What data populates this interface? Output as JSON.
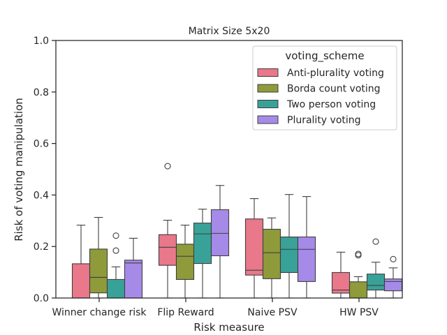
{
  "chart_data": {
    "type": "box",
    "title": "Matrix Size 5x20",
    "xlabel": "Risk measure",
    "ylabel": "Risk of voting manipulation",
    "ylim": [
      0,
      1.0
    ],
    "yticks": [
      "0.0",
      "0.2",
      "0.4",
      "0.6",
      "0.8",
      "1.0"
    ],
    "categories": [
      "Winner change risk",
      "Flip Reward",
      "Naive PSV",
      "HW PSV"
    ],
    "legend": {
      "title": "voting_scheme",
      "placement": "top-right"
    },
    "series": [
      {
        "name": "Anti-plurality voting",
        "color": "#e8788a",
        "boxes": [
          {
            "whislo": 0.0,
            "q1": 0.0,
            "med": 0.0,
            "q3": 0.133,
            "whishi": 0.283,
            "fliers": []
          },
          {
            "whislo": 0.0,
            "q1": 0.127,
            "med": 0.197,
            "q3": 0.246,
            "whishi": 0.302,
            "fliers": [
              0.512
            ]
          },
          {
            "whislo": 0.0,
            "q1": 0.089,
            "med": 0.108,
            "q3": 0.307,
            "whishi": 0.386,
            "fliers": []
          },
          {
            "whislo": 0.0,
            "q1": 0.019,
            "med": 0.031,
            "q3": 0.099,
            "whishi": 0.178,
            "fliers": []
          }
        ]
      },
      {
        "name": "Borda count voting",
        "color": "#8f9a3a",
        "boxes": [
          {
            "whislo": 0.0,
            "q1": 0.02,
            "med": 0.08,
            "q3": 0.19,
            "whishi": 0.313,
            "fliers": []
          },
          {
            "whislo": 0.0,
            "q1": 0.072,
            "med": 0.162,
            "q3": 0.209,
            "whishi": 0.283,
            "fliers": []
          },
          {
            "whislo": 0.0,
            "q1": 0.075,
            "med": 0.176,
            "q3": 0.267,
            "whishi": 0.311,
            "fliers": []
          },
          {
            "whislo": 0.0,
            "q1": 0.0,
            "med": 0.0,
            "q3": 0.063,
            "whishi": 0.083,
            "fliers": [
              0.166,
              0.171
            ]
          }
        ]
      },
      {
        "name": "Two person voting",
        "color": "#39a298",
        "boxes": [
          {
            "whislo": 0.0,
            "q1": 0.0,
            "med": 0.0,
            "q3": 0.072,
            "whishi": 0.121,
            "fliers": [
              0.184,
              0.242
            ]
          },
          {
            "whislo": 0.0,
            "q1": 0.134,
            "med": 0.249,
            "q3": 0.291,
            "whishi": 0.345,
            "fliers": []
          },
          {
            "whislo": 0.0,
            "q1": 0.099,
            "med": 0.189,
            "q3": 0.237,
            "whishi": 0.402,
            "fliers": []
          },
          {
            "whislo": 0.0,
            "q1": 0.031,
            "med": 0.049,
            "q3": 0.093,
            "whishi": 0.139,
            "fliers": [
              0.219
            ]
          }
        ]
      },
      {
        "name": "Plurality voting",
        "color": "#a68ae8",
        "boxes": [
          {
            "whislo": 0.0,
            "q1": 0.0,
            "med": 0.136,
            "q3": 0.147,
            "whishi": 0.232,
            "fliers": []
          },
          {
            "whislo": 0.0,
            "q1": 0.164,
            "med": 0.251,
            "q3": 0.343,
            "whishi": 0.437,
            "fliers": []
          },
          {
            "whislo": 0.0,
            "q1": 0.064,
            "med": 0.189,
            "q3": 0.237,
            "whishi": 0.394,
            "fliers": []
          },
          {
            "whislo": 0.0,
            "q1": 0.028,
            "med": 0.064,
            "q3": 0.074,
            "whishi": 0.117,
            "fliers": [
              0.151
            ]
          }
        ]
      }
    ]
  }
}
